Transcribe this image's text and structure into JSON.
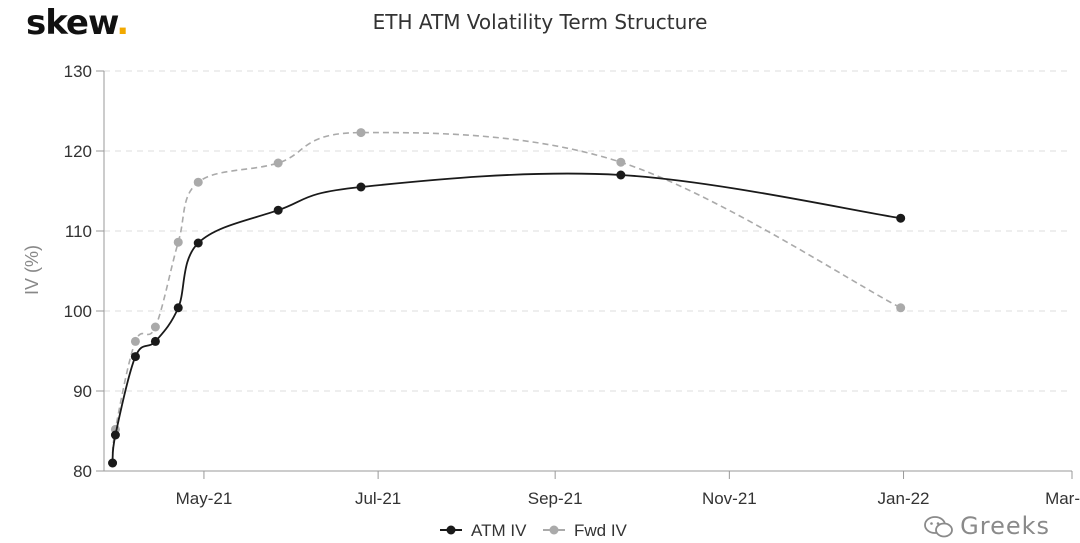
{
  "logo": {
    "text": "skew",
    "dot": "."
  },
  "watermark": {
    "text": "Greeks",
    "icon": "wechat-icon"
  },
  "chart_data": {
    "type": "line",
    "title": "ETH ATM Volatility Term Structure",
    "xlabel": "",
    "ylabel": "IV (%)",
    "x_ticks": [
      "May-21",
      "Jul-21",
      "Sep-21",
      "Nov-21",
      "Jan-22",
      "Mar-22"
    ],
    "x_tick_dates": [
      "2021-05-01",
      "2021-07-01",
      "2021-09-01",
      "2021-11-01",
      "2022-01-01",
      "2022-03-01"
    ],
    "xlim": [
      "2021-03-27",
      "2022-03-01"
    ],
    "ylim": [
      80,
      130
    ],
    "y_ticks": [
      80,
      90,
      100,
      110,
      120,
      130
    ],
    "grid": true,
    "legend": "bottom-center",
    "series": [
      {
        "name": "ATM IV",
        "color": "#1a1a1a",
        "dash": false,
        "points": [
          [
            "2021-03-30",
            81.0
          ],
          [
            "2021-03-31",
            84.5
          ],
          [
            "2021-04-07",
            94.3
          ],
          [
            "2021-04-14",
            96.2
          ],
          [
            "2021-04-22",
            100.4
          ],
          [
            "2021-04-29",
            108.5
          ],
          [
            "2021-05-27",
            112.6
          ],
          [
            "2021-06-25",
            115.5
          ],
          [
            "2021-09-24",
            117.0
          ],
          [
            "2021-12-31",
            111.6
          ]
        ]
      },
      {
        "name": "Fwd IV",
        "color": "#aaaaaa",
        "dash": true,
        "points": [
          [
            "2021-03-30",
            81.0
          ],
          [
            "2021-03-31",
            85.2
          ],
          [
            "2021-04-07",
            96.2
          ],
          [
            "2021-04-14",
            98.0
          ],
          [
            "2021-04-22",
            108.6
          ],
          [
            "2021-04-29",
            116.1
          ],
          [
            "2021-05-27",
            118.5
          ],
          [
            "2021-06-25",
            122.3
          ],
          [
            "2021-09-24",
            118.6
          ],
          [
            "2021-12-31",
            100.4
          ]
        ]
      }
    ]
  }
}
